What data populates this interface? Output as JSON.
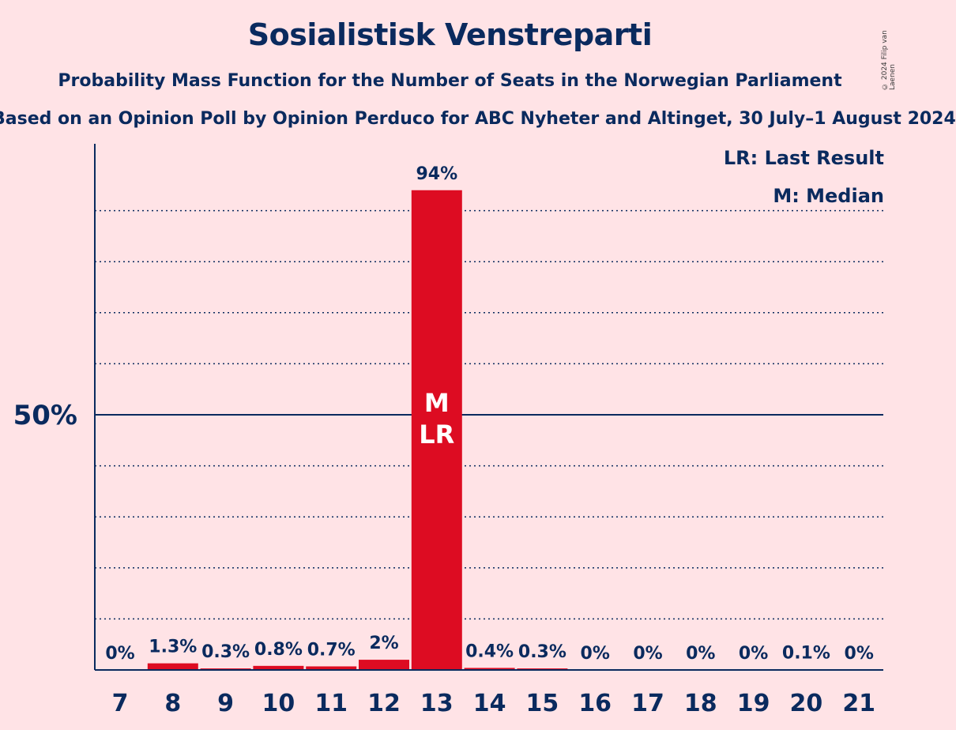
{
  "title": "Sosialistisk Venstreparti",
  "subtitle": "Probability Mass Function for the Number of Seats in the Norwegian Parliament",
  "subsubtitle": "Based on an Opinion Poll by Opinion Perduco for ABC Nyheter and Altinget, 30 July–1 August 2024",
  "copyright": "© 2024 Filip van Laenen",
  "legend": {
    "lr": "LR: Last Result",
    "m": "M: Median"
  },
  "colors": {
    "background": "#FFE3E6",
    "bar": "#DD0C22",
    "text": "#0A2A5E"
  },
  "chart_data": {
    "type": "bar",
    "categories": [
      "7",
      "8",
      "9",
      "10",
      "11",
      "12",
      "13",
      "14",
      "15",
      "16",
      "17",
      "18",
      "19",
      "20",
      "21"
    ],
    "values": [
      0,
      1.3,
      0.3,
      0.8,
      0.7,
      2,
      94,
      0.4,
      0.3,
      0,
      0,
      0,
      0,
      0.1,
      0
    ],
    "data_labels": [
      "0%",
      "1.3%",
      "0.3%",
      "0.8%",
      "0.7%",
      "2%",
      "94%",
      "0.4%",
      "0.3%",
      "0%",
      "0%",
      "0%",
      "0%",
      "0.1%",
      "0%"
    ],
    "ylim": [
      0,
      100
    ],
    "ytick_labels": [
      {
        "value": 50,
        "label": "50%"
      }
    ],
    "grid": "dotted every 10%",
    "median_seat": "13",
    "last_result_seat": "13",
    "bar_annotations": {
      "13": [
        "M",
        "LR"
      ]
    }
  }
}
